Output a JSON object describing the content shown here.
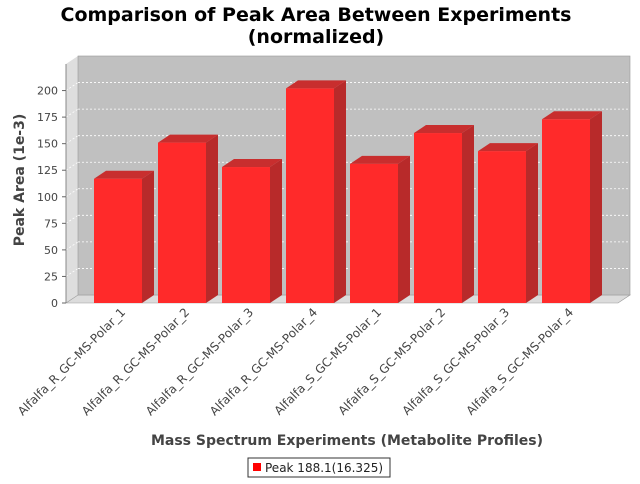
{
  "chart_data": {
    "type": "bar",
    "title_line1": "Comparison of Peak Area Between Experiments",
    "title_line2": "(normalized)",
    "xlabel": "Mass Spectrum Experiments (Metabolite Profiles)",
    "ylabel": "Peak Area (1e-3)",
    "ylim": [
      0,
      225
    ],
    "yticks": [
      0,
      25,
      50,
      75,
      100,
      125,
      150,
      175,
      200
    ],
    "categories": [
      "Alfalfa_R_GC-MS-Polar_1",
      "Alfalfa_R_GC-MS-Polar_2",
      "Alfalfa_R_GC-MS-Polar_3",
      "Alfalfa_R_GC-MS-Polar_4",
      "Alfalfa_S_GC-MS-Polar_1",
      "Alfalfa_S_GC-MS-Polar_2",
      "Alfalfa_S_GC-MS-Polar_3",
      "Alfalfa_S_GC-MS-Polar_4"
    ],
    "series": [
      {
        "name": "Peak 188.1(16.325)",
        "values": [
          117,
          151,
          128,
          202,
          131,
          160,
          143,
          173
        ]
      }
    ],
    "grid": true,
    "legend_position": "bottom",
    "colors": {
      "bar_front": "#ff2a2a",
      "bar_side": "#b82a2a",
      "bar_top": "#c82e2e",
      "plot_back": "#c0c0c0",
      "plot_wall": "#dedede",
      "plot_floor": "#dcdcdc",
      "grid": "#ffffff",
      "text": "#444444",
      "title": "#000000"
    }
  }
}
